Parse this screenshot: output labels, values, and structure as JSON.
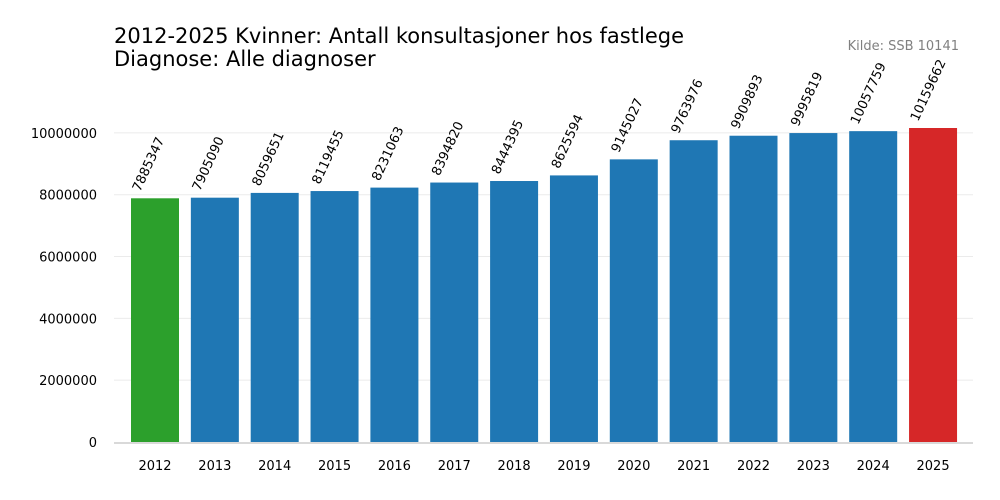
{
  "chart_data": {
    "type": "bar",
    "title_line1": "2012-2025 Kvinner: Antall konsultasjoner hos fastlege",
    "title_line2": "Diagnose: Alle diagnoser",
    "source": "Kilde: SSB 10141",
    "xlabel": "",
    "ylabel": "",
    "categories": [
      "2012",
      "2013",
      "2014",
      "2015",
      "2016",
      "2017",
      "2018",
      "2019",
      "2020",
      "2021",
      "2022",
      "2023",
      "2024",
      "2025"
    ],
    "values": [
      7885347,
      7905090,
      8059651,
      8119455,
      8231063,
      8394820,
      8444395,
      8625594,
      9145027,
      9763976,
      9909893,
      9995819,
      10057759,
      10159662
    ],
    "colors": [
      "#2ca02c",
      "#1f77b4",
      "#1f77b4",
      "#1f77b4",
      "#1f77b4",
      "#1f77b4",
      "#1f77b4",
      "#1f77b4",
      "#1f77b4",
      "#1f77b4",
      "#1f77b4",
      "#1f77b4",
      "#1f77b4",
      "#d62728"
    ],
    "yticks": [
      0,
      2000000,
      4000000,
      6000000,
      8000000,
      10000000
    ],
    "ytick_labels": [
      "0",
      "2000000",
      "4000000",
      "6000000",
      "8000000",
      "10000000"
    ],
    "ylim": [
      0,
      10159662
    ],
    "grid": true,
    "legend": "none"
  }
}
